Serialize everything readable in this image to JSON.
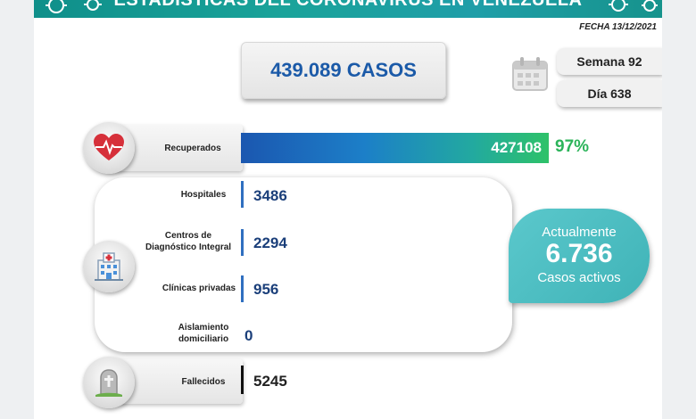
{
  "header": {
    "title": "ESTADÍSTICAS DEL CORONAVIRUS EN VENEZUELA",
    "date_text": "FECHA 13/12/2021",
    "colors": {
      "banner": "#1aa39a",
      "blue": "#1b5aa8",
      "green": "#2cb45a",
      "teal": "#4dbfc2"
    }
  },
  "total": {
    "text": "439.089 CASOS"
  },
  "calendar": {
    "week": "Semana 92",
    "day": "Día 638",
    "icon": "calendar-icon"
  },
  "recovered": {
    "label": "Recuperados",
    "value": "427108",
    "percent": "97%",
    "share": 0.97,
    "icon": "heart-pulse-icon"
  },
  "hospitalization": {
    "icon": "hospital-icon",
    "rows": [
      {
        "label_lines": [
          "Hospitales"
        ],
        "value": "3486"
      },
      {
        "label_lines": [
          "Centros de",
          "Diagnóstico Integral"
        ],
        "value": "2294"
      },
      {
        "label_lines": [
          "Clínicas privadas"
        ],
        "value": "956"
      },
      {
        "label_lines": [
          "Aislamiento",
          "domiciliario"
        ],
        "value": "0"
      }
    ]
  },
  "active": {
    "top": "Actualmente",
    "number": "6.736",
    "bottom": "Casos activos"
  },
  "deaths": {
    "label": "Fallecidos",
    "value": "5245",
    "icon": "tombstone-icon"
  }
}
